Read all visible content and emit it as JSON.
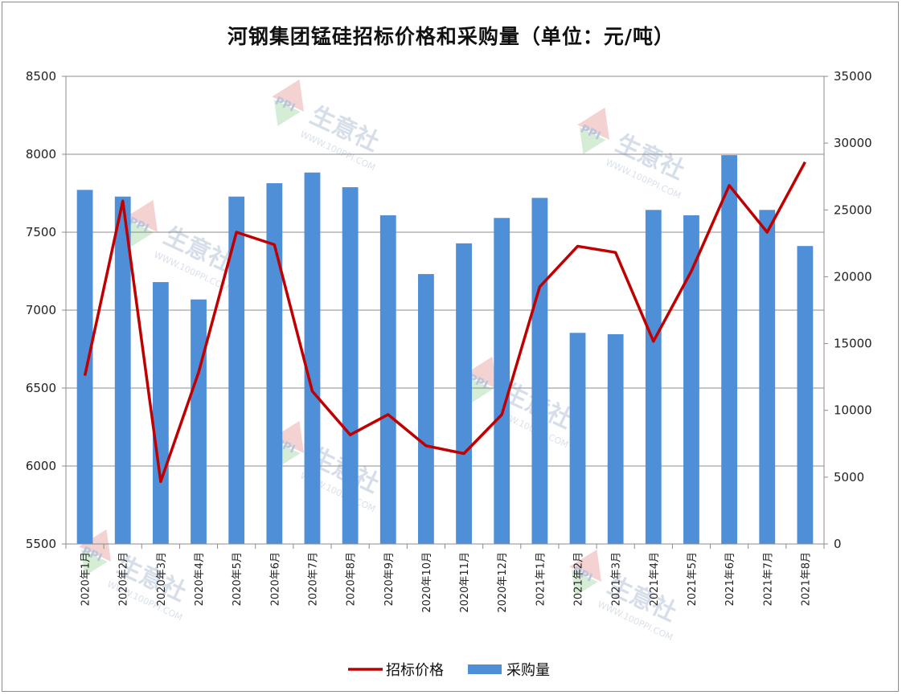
{
  "chart_data": {
    "type": "bar",
    "title": "河钢集团锰硅招标价格和采购量（单位：元/吨）",
    "categories": [
      "2020年1月",
      "2020年2月",
      "2020年3月",
      "2020年4月",
      "2020年5月",
      "2020年6月",
      "2020年7月",
      "2020年8月",
      "2020年9月",
      "2020年10月",
      "2020年11月",
      "2020年12月",
      "2021年1月",
      "2021年2月",
      "2021年3月",
      "2021年4月",
      "2021年5月",
      "2021年6月",
      "2021年7月",
      "2021年8月"
    ],
    "series": [
      {
        "name": "招标价格",
        "type": "line",
        "axis": "left",
        "color": "#c00000",
        "values": [
          6580,
          7700,
          5900,
          6600,
          7500,
          7420,
          6480,
          6200,
          6330,
          6130,
          6080,
          6330,
          7150,
          7410,
          7370,
          6800,
          7250,
          7800,
          7500,
          7950
        ]
      },
      {
        "name": "采购量",
        "type": "bar",
        "axis": "right",
        "color": "#4f8fd8",
        "values": [
          26500,
          26000,
          19600,
          18300,
          26000,
          27000,
          27800,
          26700,
          24600,
          20200,
          22500,
          24400,
          25900,
          15800,
          15700,
          25000,
          24600,
          29100,
          25000,
          22300
        ]
      }
    ],
    "y_left": {
      "ylim": [
        5500,
        8500
      ],
      "ticks": [
        "5500",
        "6000",
        "6500",
        "7000",
        "7500",
        "8000",
        "8500"
      ]
    },
    "y_right": {
      "ylim": [
        0,
        35000
      ],
      "ticks": [
        "0",
        "5000",
        "10000",
        "15000",
        "20000",
        "25000",
        "30000",
        "35000"
      ]
    },
    "grid": true,
    "legend": {
      "position": "bottom",
      "items": [
        "招标价格",
        "采购量"
      ]
    }
  },
  "watermark": {
    "brand": "生意社",
    "logo": "PPI",
    "url": "WWW.100PPI.COM"
  }
}
